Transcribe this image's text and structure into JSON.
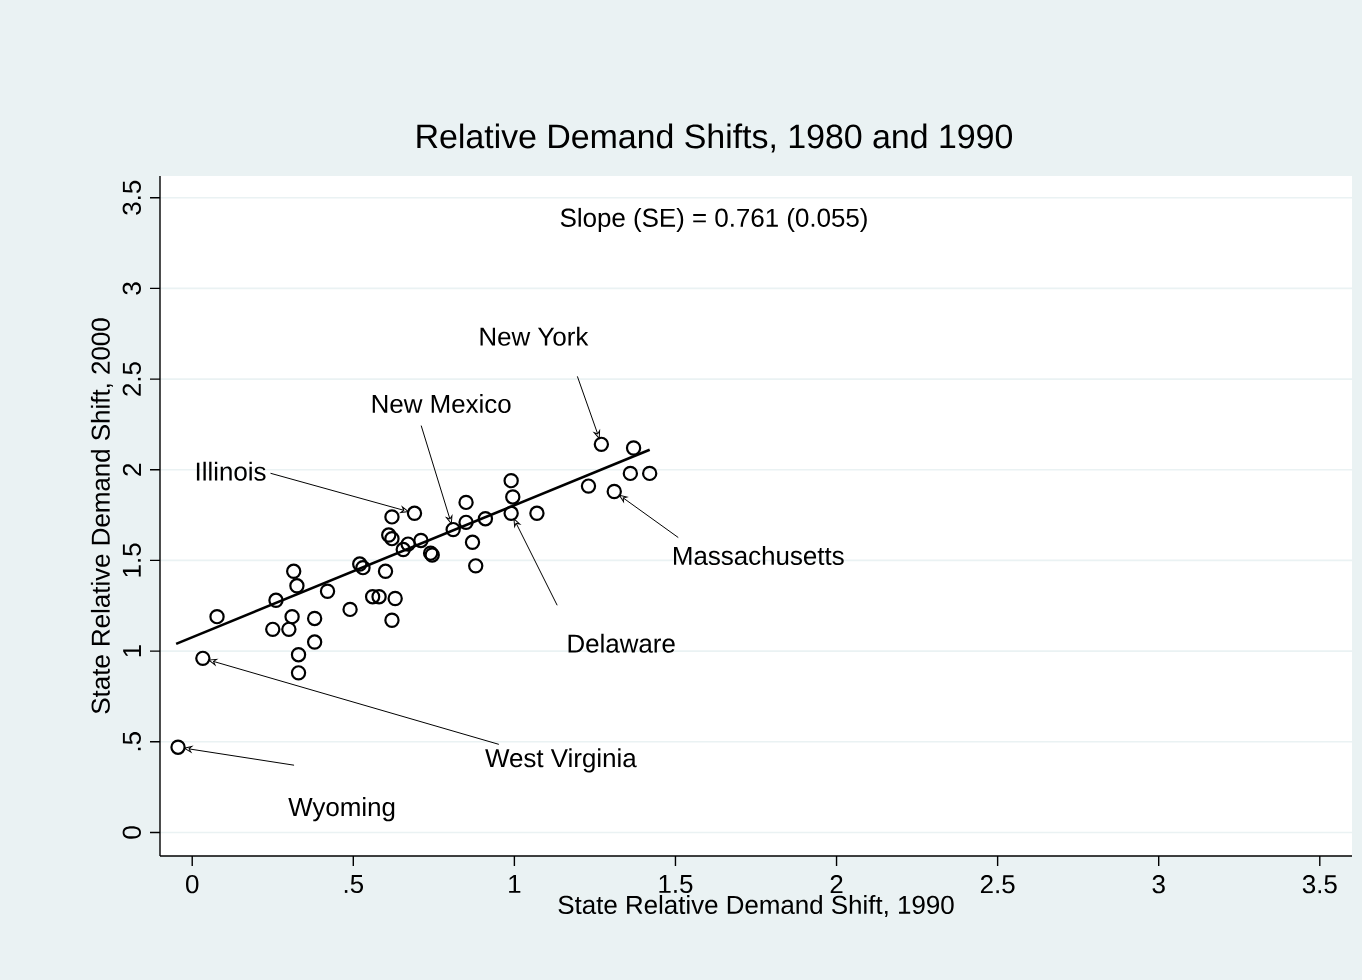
{
  "chart_data": {
    "type": "scatter",
    "title": "Relative Demand Shifts, 1980 and 1990",
    "subtitle": "Slope (SE) = 0.761 (0.055)",
    "xlabel": "State Relative Demand Shift, 1990",
    "ylabel": "State Relative Demand Shift, 2000",
    "series": [
      {
        "type": "scatter",
        "color": "#000000",
        "marker": "circle",
        "x": [
          -0.044,
          0.033,
          0.077,
          0.25,
          0.3,
          0.26,
          0.315,
          0.325,
          0.31,
          0.38,
          0.33,
          0.38,
          0.33,
          0.42,
          0.49,
          0.52,
          0.53,
          0.56,
          0.58,
          0.6,
          0.63,
          0.62,
          0.62,
          0.61,
          0.62,
          0.655,
          0.67,
          0.69,
          0.71,
          0.74,
          0.745,
          0.81,
          0.85,
          0.85,
          0.87,
          0.88,
          0.91,
          0.99,
          0.995,
          0.99,
          1.07,
          1.23,
          1.27,
          1.31,
          1.37,
          1.36,
          1.42
        ],
        "values": [
          0.47,
          0.96,
          1.19,
          1.12,
          1.12,
          1.28,
          1.44,
          1.36,
          1.19,
          1.18,
          0.98,
          1.05,
          0.88,
          1.33,
          1.23,
          1.48,
          1.46,
          1.3,
          1.3,
          1.44,
          1.29,
          1.17,
          1.74,
          1.64,
          1.62,
          1.56,
          1.59,
          1.76,
          1.61,
          1.54,
          1.53,
          1.67,
          1.71,
          1.82,
          1.6,
          1.47,
          1.73,
          1.94,
          1.85,
          1.76,
          1.76,
          1.91,
          2.14,
          1.88,
          2.12,
          1.98,
          1.98
        ]
      },
      {
        "type": "line",
        "color": "#000000",
        "x": [
          -0.05,
          1.42
        ],
        "values": [
          1.04,
          2.11
        ]
      }
    ],
    "grid": "y",
    "xlim": [
      -0.1,
      3.6
    ],
    "ylim": [
      -0.13,
      3.62
    ],
    "xticks": [
      0,
      {
        "value": 0.5,
        "label": ".5"
      },
      1,
      {
        "value": 1.5,
        "label": "1.5"
      },
      2,
      {
        "value": 2.5,
        "label": "2.5"
      },
      3,
      {
        "value": 3.5,
        "label": "3.5"
      }
    ],
    "yticks": [
      0,
      {
        "value": 0.5,
        "label": ".5"
      },
      1,
      {
        "value": 1.5,
        "label": "1.5"
      },
      2,
      {
        "value": 2.5,
        "label": "2.5"
      },
      3,
      {
        "value": 3.5,
        "label": "3.5"
      }
    ],
    "annotations": [
      {
        "text": "New York",
        "x": 1.27,
        "y": 2.14
      },
      {
        "text": "New Mexico",
        "x": 0.81,
        "y": 1.67
      },
      {
        "text": "Illinois",
        "x": 0.69,
        "y": 1.76
      },
      {
        "text": "Massachusetts",
        "x": 1.31,
        "y": 1.88
      },
      {
        "text": "Delaware",
        "x": 0.99,
        "y": 1.76
      },
      {
        "text": "West Virginia",
        "x": 0.033,
        "y": 0.96
      },
      {
        "text": "Wyoming",
        "x": -0.044,
        "y": 0.47
      }
    ]
  }
}
